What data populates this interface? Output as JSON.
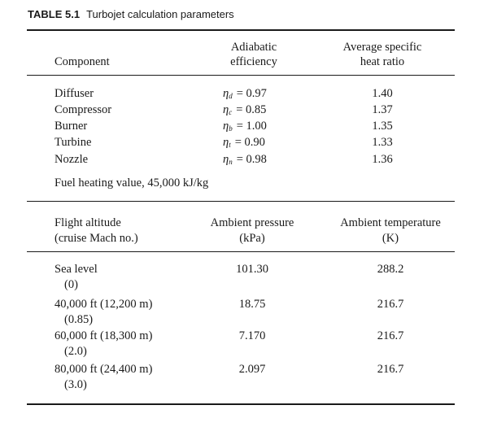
{
  "table_number": "TABLE 5.1",
  "table_title": "Turbojet calculation parameters",
  "components_table": {
    "headers": {
      "component": "Component",
      "efficiency_line1": "Adiabatic",
      "efficiency_line2": "efficiency",
      "heat_ratio_line1": "Average specific",
      "heat_ratio_line2": "heat ratio"
    },
    "rows": [
      {
        "component": "Diffuser",
        "eta_symbol": "η",
        "eta_subscript": "d",
        "eta_value": "= 0.97",
        "heat_ratio": "1.40"
      },
      {
        "component": "Compressor",
        "eta_symbol": "η",
        "eta_subscript": "c",
        "eta_value": "= 0.85",
        "heat_ratio": "1.37"
      },
      {
        "component": "Burner",
        "eta_symbol": "η",
        "eta_subscript": "b",
        "eta_value": "= 1.00",
        "heat_ratio": "1.35"
      },
      {
        "component": "Turbine",
        "eta_symbol": "η",
        "eta_subscript": "t",
        "eta_value": "= 0.90",
        "heat_ratio": "1.33"
      },
      {
        "component": "Nozzle",
        "eta_symbol": "η",
        "eta_subscript": "n",
        "eta_value": "= 0.98",
        "heat_ratio": "1.36"
      }
    ],
    "footnote": "Fuel heating value, 45,000 kJ/kg"
  },
  "flight_table": {
    "headers": {
      "altitude_line1": "Flight altitude",
      "altitude_line2": "(cruise Mach no.)",
      "pressure_line1": "Ambient pressure",
      "pressure_line2": "(kPa)",
      "temperature_line1": "Ambient temperature",
      "temperature_line2": "(K)"
    },
    "rows": [
      {
        "altitude": "Sea level",
        "mach": "(0)",
        "pressure": "101.30",
        "temperature": "288.2"
      },
      {
        "altitude": "40,000 ft (12,200 m)",
        "mach": "(0.85)",
        "pressure": "18.75",
        "temperature": "216.7"
      },
      {
        "altitude": "60,000 ft (18,300 m)",
        "mach": "(2.0)",
        "pressure": "7.170",
        "temperature": "216.7"
      },
      {
        "altitude": "80,000 ft (24,400 m)",
        "mach": "(3.0)",
        "pressure": "2.097",
        "temperature": "216.7"
      }
    ]
  }
}
